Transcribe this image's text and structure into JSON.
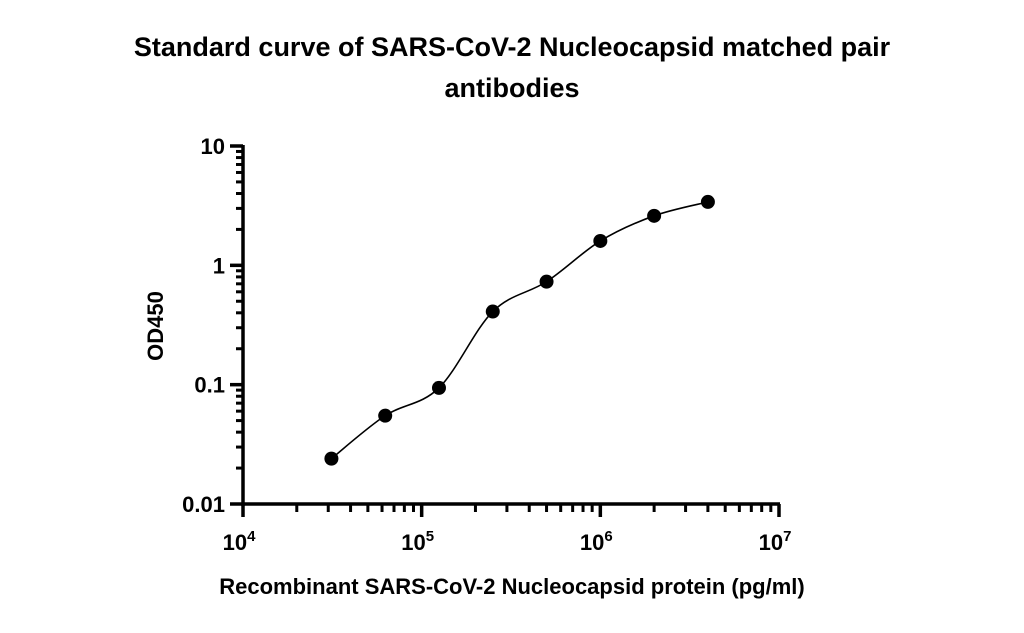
{
  "chart_data": {
    "type": "scatter",
    "title_line1": "Standard curve of SARS-CoV-2 Nucleocapsid matched pair",
    "title_line2": "antibodies",
    "xlabel": "Recombinant SARS-CoV-2 Nucleocapsid protein (pg/ml)",
    "ylabel": "OD450",
    "x_scale": "log",
    "y_scale": "log",
    "xlim": [
      10000,
      10000000
    ],
    "ylim": [
      0.01,
      10
    ],
    "x_ticks": [
      {
        "base": "10",
        "exp": "4"
      },
      {
        "base": "10",
        "exp": "5"
      },
      {
        "base": "10",
        "exp": "6"
      },
      {
        "base": "10",
        "exp": "7"
      }
    ],
    "y_ticks": [
      "0.01",
      "0.1",
      "1",
      "10"
    ],
    "grid": false,
    "fit_curve": true,
    "point_color": "#000000",
    "x": [
      31250,
      62500,
      125000,
      250000,
      500000,
      1000000,
      2000000,
      4000000
    ],
    "y": [
      0.024,
      0.055,
      0.094,
      0.41,
      0.73,
      1.6,
      2.6,
      3.4
    ]
  }
}
